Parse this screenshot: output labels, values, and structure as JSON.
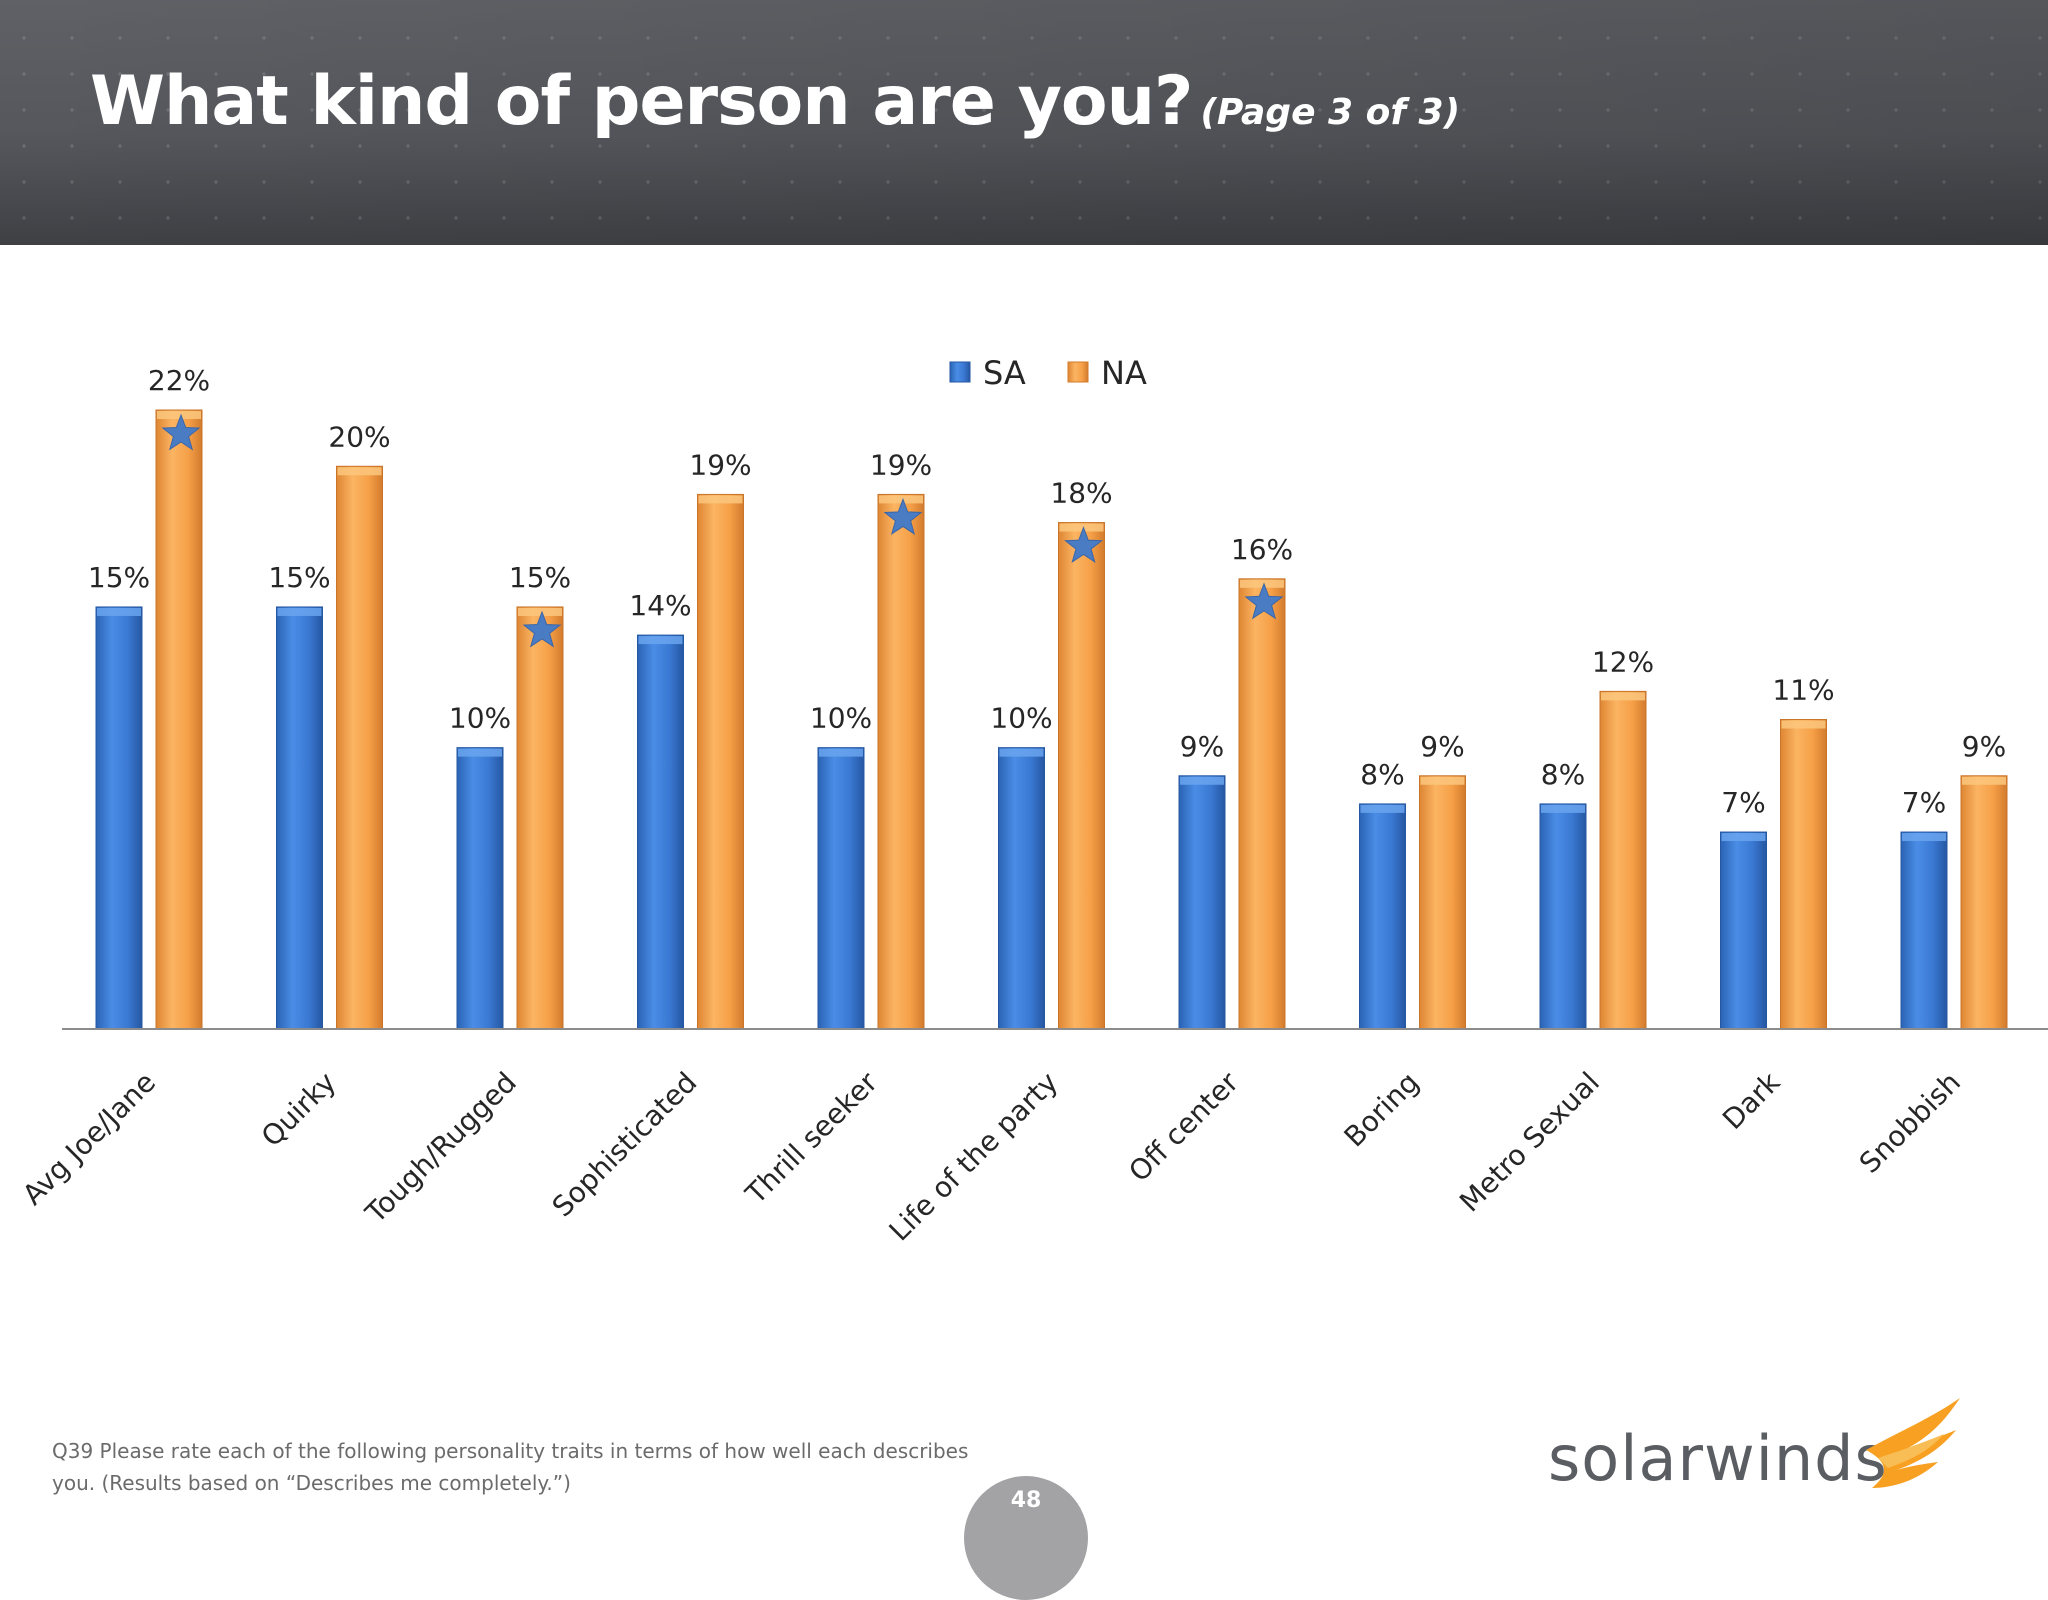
{
  "header": {
    "title": "What kind of person are you?",
    "subtitle": "(Page 3 of 3)"
  },
  "footnote": "Q39 Please rate each of the following personality traits in terms of how well each describes you. (Results based on “Describes me completely.”)",
  "page_number": "48",
  "logo": {
    "text": "solarwinds"
  },
  "colors": {
    "sa": "#3b7dd8",
    "na": "#f7a34a",
    "star": "#4a7cc4",
    "axis": "#8c8c8c",
    "label": "#262626",
    "logo_flame": "#f7a021"
  },
  "chart_data": {
    "type": "bar",
    "categories": [
      "Avg Joe/Jane",
      "Quirky",
      "Tough/Rugged",
      "Sophisticated",
      "Thrill seeker",
      "Life of the party",
      "Off center",
      "Boring",
      "Metro Sexual",
      "Dark",
      "Snobbish"
    ],
    "series": [
      {
        "name": "SA",
        "values": [
          15,
          15,
          10,
          14,
          10,
          10,
          9,
          8,
          8,
          7,
          7
        ]
      },
      {
        "name": "NA",
        "values": [
          22,
          20,
          15,
          19,
          19,
          18,
          16,
          9,
          12,
          11,
          9
        ]
      }
    ],
    "data_labels": {
      "SA": [
        "15%",
        "15%",
        "10%",
        "14%",
        "10%",
        "10%",
        "9%",
        "8%",
        "8%",
        "7%",
        "7%"
      ],
      "NA": [
        "22%",
        "20%",
        "15%",
        "19%",
        "19%",
        "18%",
        "16%",
        "9%",
        "12%",
        "11%",
        "9%"
      ]
    },
    "star_markers": {
      "series": "NA",
      "categories": [
        "Avg Joe/Jane",
        "Tough/Rugged",
        "Thrill seeker",
        "Life of the party",
        "Off center"
      ]
    },
    "ylim": [
      0,
      22
    ],
    "legend": "top-center",
    "grid": false,
    "title": "",
    "xlabel": "",
    "ylabel": ""
  }
}
